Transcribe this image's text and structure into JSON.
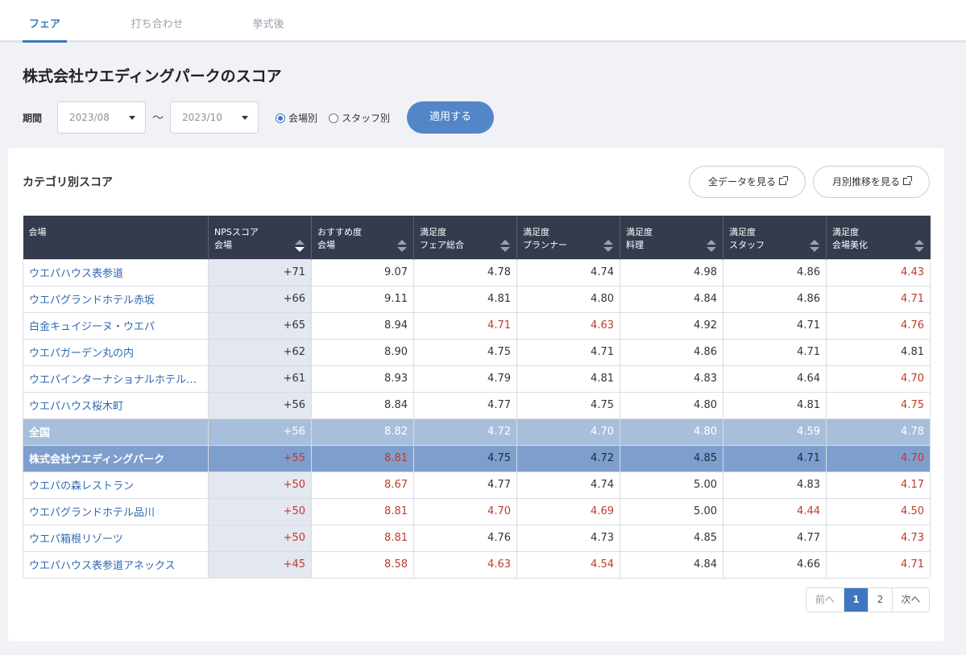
{
  "tabs": [
    "フェア",
    "打ち合わせ",
    "挙式後"
  ],
  "page_title": "株式会社ウエディングパークのスコア",
  "filter": {
    "period_label": "期間",
    "from": "2023/08",
    "separator": "～",
    "to": "2023/10",
    "radio_venue": "会場別",
    "radio_staff": "スタッフ別",
    "apply_label": "適用する"
  },
  "card": {
    "title": "カテゴリ別スコア",
    "all_data_label": "全データを見る",
    "monthly_label": "月別推移を見る"
  },
  "table": {
    "headers": [
      {
        "l1": "会場",
        "l2": ""
      },
      {
        "l1": "NPSスコア",
        "l2": "会場"
      },
      {
        "l1": "おすすめ度",
        "l2": "会場"
      },
      {
        "l1": "満足度",
        "l2": "フェア総合"
      },
      {
        "l1": "満足度",
        "l2": "プランナー"
      },
      {
        "l1": "満足度",
        "l2": "料理"
      },
      {
        "l1": "満足度",
        "l2": "スタッフ"
      },
      {
        "l1": "満足度",
        "l2": "会場美化"
      }
    ],
    "rows": [
      [
        "ウエパハウス表参道",
        "+71",
        "9.07",
        "4.78",
        "4.74",
        "4.98",
        "4.86",
        "4.43"
      ],
      [
        "ウエパグランドホテル赤坂",
        "+66",
        "9.11",
        "4.81",
        "4.80",
        "4.84",
        "4.86",
        "4.71"
      ],
      [
        "白金キュイジーヌ・ウエパ",
        "+65",
        "8.94",
        "4.71",
        "4.63",
        "4.92",
        "4.71",
        "4.76"
      ],
      [
        "ウエパガーデン丸の内",
        "+62",
        "8.90",
        "4.75",
        "4.71",
        "4.86",
        "4.71",
        "4.81"
      ],
      [
        "ウエパインターナショナルホテル東京ベイ",
        "+61",
        "8.93",
        "4.79",
        "4.81",
        "4.83",
        "4.64",
        "4.70"
      ],
      [
        "ウエパハウス桜木町",
        "+56",
        "8.84",
        "4.77",
        "4.75",
        "4.80",
        "4.81",
        "4.75"
      ],
      [
        "全国",
        "+56",
        "8.82",
        "4.72",
        "4.70",
        "4.80",
        "4.59",
        "4.78"
      ],
      [
        "株式会社ウエディングパーク",
        "+55",
        "8.81",
        "4.75",
        "4.72",
        "4.85",
        "4.71",
        "4.70"
      ],
      [
        "ウエパの森レストラン",
        "+50",
        "8.67",
        "4.77",
        "4.74",
        "5.00",
        "4.83",
        "4.17"
      ],
      [
        "ウエパグランドホテル品川",
        "+50",
        "8.81",
        "4.70",
        "4.69",
        "5.00",
        "4.44",
        "4.50"
      ],
      [
        "ウエパ箱根リゾーツ",
        "+50",
        "8.81",
        "4.76",
        "4.73",
        "4.85",
        "4.77",
        "4.73"
      ],
      [
        "ウエパハウス表参道アネックス",
        "+45",
        "8.58",
        "4.63",
        "4.54",
        "4.84",
        "4.66",
        "4.71"
      ]
    ]
  },
  "pager": {
    "prev": "前へ",
    "pages": [
      "1",
      "2"
    ],
    "next": "次へ"
  },
  "colors": {
    "accent": "#3e76bf",
    "header_bg": "#343b4d",
    "negative": "#c0392b",
    "national_row": "#a8bfdb",
    "company_row": "#7e9fcd"
  }
}
